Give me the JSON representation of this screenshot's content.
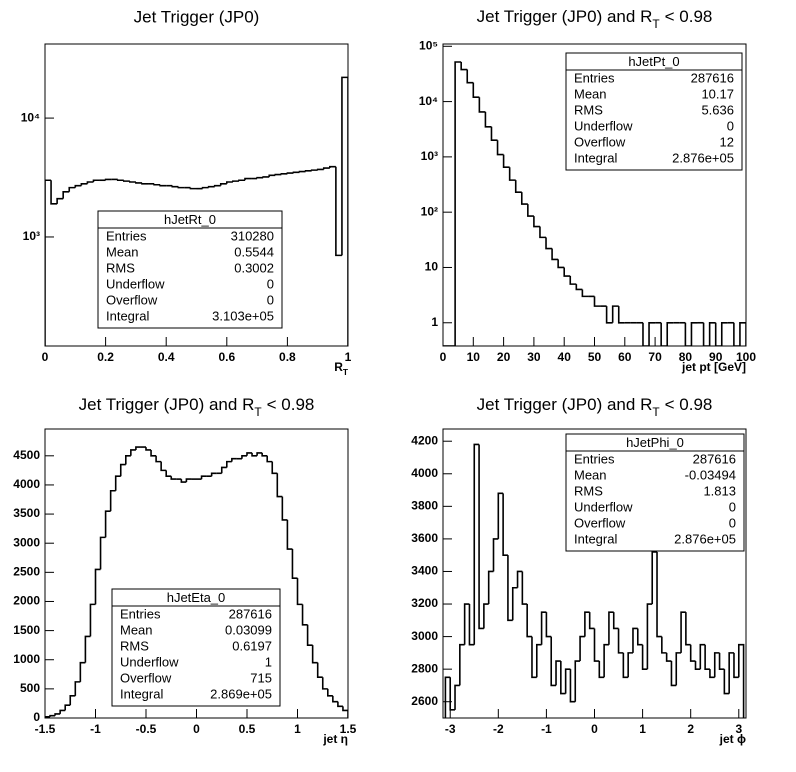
{
  "chart_data": [
    {
      "type": "histogram",
      "title": "Jet Trigger (JP0)",
      "x_label": {
        "text": "R",
        "sub": "T"
      },
      "color": "#000000",
      "log_y": true,
      "xlim": [
        0,
        1
      ],
      "ylim": [
        121,
        42000
      ],
      "xticks": [
        0,
        0.2,
        0.4,
        0.6,
        0.8,
        1
      ],
      "yticks": [
        {
          "value": 1000,
          "label": "10³"
        },
        {
          "value": 10000,
          "label": "10⁴"
        }
      ],
      "bins": [
        0,
        0.02,
        0.04,
        0.06,
        0.08,
        0.1,
        0.12,
        0.14,
        0.16,
        0.18,
        0.2,
        0.22,
        0.24,
        0.26,
        0.28,
        0.3,
        0.32,
        0.34,
        0.36,
        0.38,
        0.4,
        0.42,
        0.44,
        0.46,
        0.48,
        0.5,
        0.52,
        0.54,
        0.56,
        0.58,
        0.6,
        0.62,
        0.64,
        0.66,
        0.68,
        0.7,
        0.72,
        0.74,
        0.76,
        0.78,
        0.8,
        0.82,
        0.84,
        0.86,
        0.88,
        0.9,
        0.92,
        0.94,
        0.96,
        0.98,
        1
      ],
      "values": [
        3000,
        1900,
        2100,
        2400,
        2600,
        2700,
        2800,
        2900,
        3000,
        3000,
        3050,
        3050,
        3000,
        2950,
        2900,
        2850,
        2800,
        2800,
        2750,
        2700,
        2700,
        2650,
        2600,
        2600,
        2550,
        2550,
        2600,
        2650,
        2700,
        2800,
        2900,
        2950,
        3000,
        3100,
        3100,
        3150,
        3200,
        3300,
        3350,
        3400,
        3450,
        3500,
        3550,
        3600,
        3650,
        3700,
        3800,
        3900,
        700,
        22000
      ],
      "stats": {
        "name": "hJetRt_0",
        "rows": [
          [
            "Entries",
            "310280"
          ],
          [
            "Mean",
            "0.5544"
          ],
          [
            "RMS",
            "0.3002"
          ],
          [
            "Underflow",
            "0"
          ],
          [
            "Overflow",
            "0"
          ],
          [
            "Integral",
            "3.103e+05"
          ]
        ]
      }
    },
    {
      "type": "histogram",
      "title": {
        "text": "Jet Trigger (JP0) and R",
        "sub": "T",
        "tail": "< 0.98"
      },
      "x_label": "jet pt [GeV]",
      "color": "#000000",
      "log_y": true,
      "xlim": [
        0,
        100
      ],
      "ylim": [
        0.38,
        110000
      ],
      "xticks": [
        0,
        10,
        20,
        30,
        40,
        50,
        60,
        70,
        80,
        90,
        100
      ],
      "yticks": [
        1,
        10,
        {
          "value": 100,
          "label": "10²"
        },
        {
          "value": 1000,
          "label": "10³"
        },
        {
          "value": 10000,
          "label": "10⁴"
        },
        {
          "value": 100000,
          "label": "10⁵"
        }
      ],
      "bins": [
        0,
        2,
        4,
        6,
        8,
        10,
        12,
        14,
        16,
        18,
        20,
        22,
        24,
        26,
        28,
        30,
        32,
        34,
        36,
        38,
        40,
        42,
        44,
        46,
        48,
        50,
        52,
        54,
        56,
        58,
        60,
        62,
        64,
        66,
        68,
        70,
        72,
        74,
        76,
        78,
        80,
        82,
        84,
        86,
        88,
        90,
        92,
        94,
        96,
        98,
        100
      ],
      "values": [
        0,
        0,
        52000,
        38000,
        22000,
        12000,
        6500,
        3500,
        2000,
        1100,
        650,
        380,
        230,
        140,
        85,
        55,
        35,
        22,
        14,
        10,
        7,
        5,
        4,
        3,
        3,
        2,
        2,
        1,
        2,
        1,
        1,
        1,
        1,
        0,
        1,
        1,
        0,
        1,
        1,
        1,
        0,
        1,
        1,
        0,
        1,
        0,
        1,
        1,
        0,
        1
      ],
      "stats": {
        "name": "hJetPt_0",
        "rows": [
          [
            "Entries",
            "287616"
          ],
          [
            "Mean",
            "10.17"
          ],
          [
            "RMS",
            "5.636"
          ],
          [
            "Underflow",
            "0"
          ],
          [
            "Overflow",
            "12"
          ],
          [
            "Integral",
            "2.876e+05"
          ]
        ]
      }
    },
    {
      "type": "histogram",
      "title": {
        "text": "Jet Trigger (JP0) and R",
        "sub": "T",
        "tail": "< 0.98"
      },
      "x_label": "jet η",
      "color": "#000000",
      "log_y": false,
      "xlim": [
        -1.5,
        1.5
      ],
      "ylim": [
        0,
        4960
      ],
      "xticks": [
        -1.5,
        -1,
        -0.5,
        0,
        0.5,
        1,
        1.5
      ],
      "yticks": [
        0,
        500,
        1000,
        1500,
        2000,
        2500,
        3000,
        3500,
        4000,
        4500
      ],
      "bins": [
        -1.5,
        -1.45,
        -1.4,
        -1.35,
        -1.3,
        -1.25,
        -1.2,
        -1.15,
        -1.1,
        -1.05,
        -1,
        -0.95,
        -0.9,
        -0.85,
        -0.8,
        -0.75,
        -0.7,
        -0.65,
        -0.6,
        -0.55,
        -0.5,
        -0.45,
        -0.4,
        -0.35,
        -0.3,
        -0.25,
        -0.2,
        -0.15,
        -0.1,
        -0.05,
        0,
        0.05,
        0.1,
        0.15,
        0.2,
        0.25,
        0.3,
        0.35,
        0.4,
        0.45,
        0.5,
        0.55,
        0.6,
        0.65,
        0.7,
        0.75,
        0.8,
        0.85,
        0.9,
        0.95,
        1,
        1.05,
        1.1,
        1.15,
        1.2,
        1.25,
        1.3,
        1.35,
        1.4,
        1.45,
        1.5
      ],
      "values": [
        20,
        40,
        70,
        130,
        220,
        380,
        620,
        950,
        1400,
        1950,
        2550,
        3100,
        3550,
        3900,
        4150,
        4350,
        4500,
        4600,
        4650,
        4650,
        4600,
        4500,
        4400,
        4250,
        4150,
        4100,
        4100,
        4050,
        4100,
        4100,
        4100,
        4150,
        4150,
        4200,
        4200,
        4300,
        4400,
        4450,
        4450,
        4500,
        4550,
        4500,
        4550,
        4500,
        4400,
        4200,
        3800,
        3400,
        2900,
        2400,
        1950,
        1600,
        1250,
        950,
        700,
        500,
        380,
        280,
        200,
        130
      ],
      "stats": {
        "name": "hJetEta_0",
        "rows": [
          [
            "Entries",
            "287616"
          ],
          [
            "Mean",
            "0.03099"
          ],
          [
            "RMS",
            "0.6197"
          ],
          [
            "Underflow",
            "1"
          ],
          [
            "Overflow",
            "715"
          ],
          [
            "Integral",
            "2.869e+05"
          ]
        ]
      }
    },
    {
      "type": "histogram",
      "title": {
        "text": "Jet Trigger (JP0) and R",
        "sub": "T",
        "tail": "< 0.98"
      },
      "x_label": "jet ϕ",
      "color": "#000000",
      "log_y": false,
      "xlim": [
        -3.15,
        3.15
      ],
      "ylim": [
        2500,
        4275
      ],
      "xticks": [
        -3,
        -2,
        -1,
        0,
        1,
        2,
        3
      ],
      "yticks": [
        2600,
        2800,
        3000,
        3200,
        3400,
        3600,
        3800,
        4000,
        4200
      ],
      "bins": [
        -3.1,
        -3,
        -2.9,
        -2.8,
        -2.7,
        -2.6,
        -2.5,
        -2.4,
        -2.3,
        -2.2,
        -2.1,
        -2,
        -1.9,
        -1.8,
        -1.7,
        -1.6,
        -1.5,
        -1.4,
        -1.3,
        -1.2,
        -1.1,
        -1,
        -0.9,
        -0.8,
        -0.7,
        -0.6,
        -0.5,
        -0.4,
        -0.3,
        -0.2,
        -0.1,
        0,
        0.1,
        0.2,
        0.3,
        0.4,
        0.5,
        0.6,
        0.7,
        0.8,
        0.9,
        1,
        1.1,
        1.2,
        1.3,
        1.4,
        1.5,
        1.6,
        1.7,
        1.8,
        1.9,
        2,
        2.1,
        2.2,
        2.3,
        2.4,
        2.5,
        2.6,
        2.7,
        2.8,
        2.9,
        3,
        3.1
      ],
      "values": [
        2750,
        2550,
        2700,
        2950,
        3200,
        2950,
        4180,
        3050,
        3200,
        3400,
        3600,
        3880,
        3500,
        3100,
        3300,
        3400,
        3200,
        3000,
        2750,
        2950,
        3150,
        3000,
        2700,
        2850,
        2650,
        2800,
        2600,
        2850,
        3000,
        3150,
        3050,
        2850,
        2750,
        2950,
        3150,
        3050,
        2900,
        2750,
        2900,
        3050,
        2950,
        2800,
        3200,
        3520,
        3000,
        2900,
        2850,
        2700,
        2900,
        3150,
        2950,
        2850,
        2800,
        2950,
        2800,
        2750,
        2900,
        2800,
        2650,
        2900,
        2750,
        2950
      ],
      "stats": {
        "name": "hJetPhi_0",
        "rows": [
          [
            "Entries",
            "287616"
          ],
          [
            "Mean",
            "-0.03494"
          ],
          [
            "RMS",
            "1.813"
          ],
          [
            "Underflow",
            "0"
          ],
          [
            "Overflow",
            "0"
          ],
          [
            "Integral",
            "2.876e+05"
          ]
        ]
      }
    }
  ]
}
